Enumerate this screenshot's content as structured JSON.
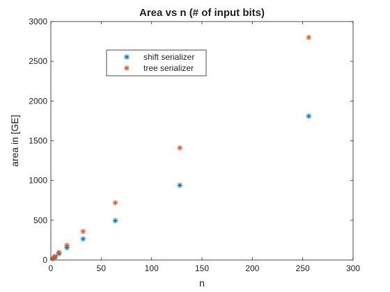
{
  "chart_data": {
    "type": "scatter",
    "title": "Area vs n (# of input bits)",
    "xlabel": "n",
    "ylabel": "area in [GE]",
    "xlim": [
      0,
      300
    ],
    "ylim": [
      0,
      3000
    ],
    "xticks": [
      0,
      50,
      100,
      150,
      200,
      250,
      300
    ],
    "yticks": [
      0,
      500,
      1000,
      1500,
      2000,
      2500,
      3000
    ],
    "grid": false,
    "legend_position": "top-center",
    "marker": "asterisk",
    "series": [
      {
        "name": "shift serializer",
        "color": "#0072BD",
        "x": [
          2,
          4,
          8,
          16,
          32,
          64,
          128,
          256
        ],
        "y": [
          15,
          35,
          80,
          155,
          265,
          495,
          940,
          1810
        ]
      },
      {
        "name": "tree serializer",
        "color": "#D95319",
        "x": [
          2,
          4,
          8,
          16,
          32,
          64,
          128,
          256
        ],
        "y": [
          20,
          45,
          95,
          185,
          360,
          720,
          1410,
          2800
        ]
      }
    ]
  }
}
